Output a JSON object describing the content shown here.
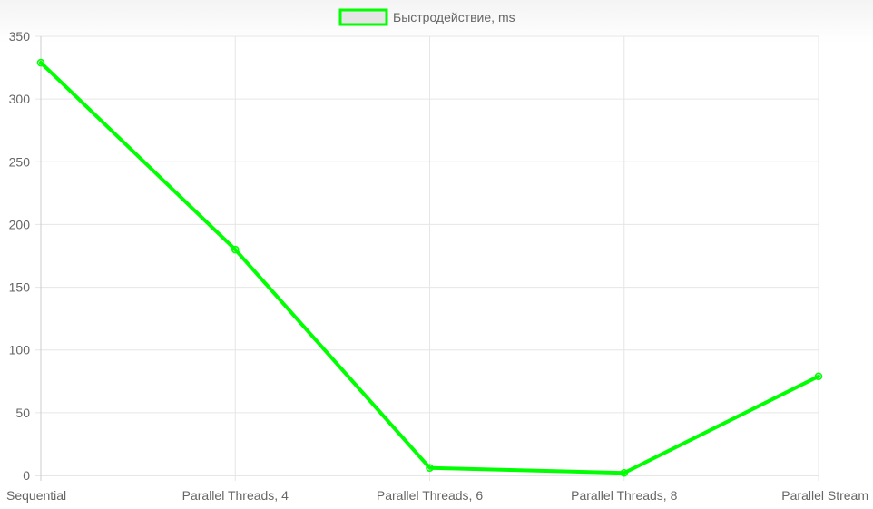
{
  "chart_data": {
    "type": "line",
    "categories": [
      "Sequential",
      "Parallel Threads, 4",
      "Parallel Threads, 6",
      "Parallel Threads, 8",
      "Parallel Stream"
    ],
    "series": [
      {
        "name": "Быстродействие, ms",
        "values": [
          329,
          180,
          6,
          2,
          79
        ],
        "color": "#00ff00",
        "legend_fill": "#e5e5e5"
      }
    ],
    "ylim": [
      0,
      350
    ],
    "yticks": [
      0,
      50,
      100,
      150,
      200,
      250,
      300,
      350
    ],
    "grid": true,
    "legend_position": "top-center",
    "gridline_color": "#e6e6e6",
    "axis_color": "#cccccc"
  }
}
